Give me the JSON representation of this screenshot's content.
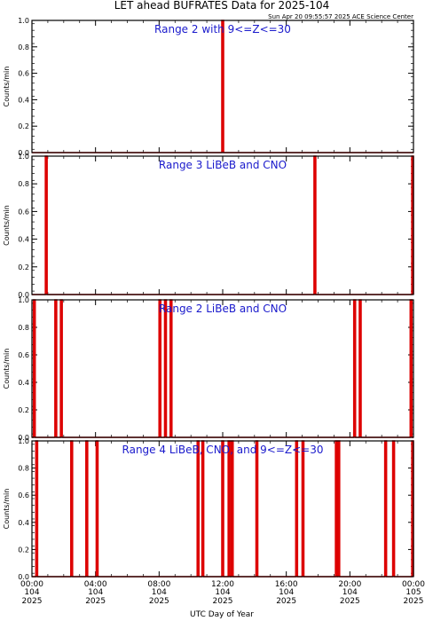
{
  "title": "LET ahead BUFRATES Data for 2025-104",
  "timestamp": "Sun Apr 20 09:55:57 2025 ACE Science Center",
  "xlabel": "UTC Day of Year",
  "colors": {
    "series": "#dd0000",
    "label": "#1a1acc",
    "axis": "#000000"
  },
  "chart_data": [
    {
      "type": "line",
      "label": "Range 2 with 9<=Z<=30",
      "ylabel": "Counts/min",
      "ylim": [
        0,
        1
      ],
      "yticks": [
        "0.0",
        "0.2",
        "0.4",
        "0.6",
        "0.8",
        "1.0"
      ],
      "xlim_hours": [
        0,
        24
      ],
      "spikes_hours": [
        12.0
      ]
    },
    {
      "type": "line",
      "label": "Range 3 LiBeB and CNO",
      "ylabel": "Counts/min",
      "ylim": [
        0,
        1
      ],
      "yticks": [
        "0.0",
        "0.2",
        "0.4",
        "0.6",
        "0.8",
        "1.0"
      ],
      "xlim_hours": [
        0,
        24
      ],
      "spikes_hours": [
        0.9,
        17.8,
        23.95
      ]
    },
    {
      "type": "line",
      "label": "Range 2 LiBeB and CNO",
      "ylabel": "Counts/min",
      "ylim": [
        0,
        1
      ],
      "yticks": [
        "0.0",
        "0.2",
        "0.4",
        "0.6",
        "0.8",
        "1.0"
      ],
      "xlim_hours": [
        0,
        24
      ],
      "spikes_hours": [
        0.15,
        1.5,
        1.85,
        8.05,
        8.4,
        8.75,
        20.3,
        20.65,
        23.85
      ]
    },
    {
      "type": "line",
      "label": "Range 4 LiBeB, CNO, and 9<=Z<=30",
      "ylabel": "Counts/min",
      "ylim": [
        0,
        1
      ],
      "yticks": [
        "0.0",
        "0.2",
        "0.4",
        "0.6",
        "0.8",
        "1.0"
      ],
      "xlim_hours": [
        0,
        24
      ],
      "spikes_hours": [
        0.3,
        2.5,
        3.45,
        4.1,
        10.45,
        10.75,
        12.0,
        12.4,
        12.6,
        14.15,
        16.65,
        17.05,
        19.15,
        19.3,
        22.25,
        22.75,
        23.95
      ]
    }
  ],
  "xticks": [
    {
      "h": 0,
      "time": "00:00",
      "doy": "104",
      "year": "2025"
    },
    {
      "h": 4,
      "time": "04:00",
      "doy": "104",
      "year": "2025"
    },
    {
      "h": 8,
      "time": "08:00",
      "doy": "104",
      "year": "2025"
    },
    {
      "h": 12,
      "time": "12:00",
      "doy": "104",
      "year": "2025"
    },
    {
      "h": 16,
      "time": "16:00",
      "doy": "104",
      "year": "2025"
    },
    {
      "h": 20,
      "time": "20:00",
      "doy": "104",
      "year": "2025"
    },
    {
      "h": 24,
      "time": "00:00",
      "doy": "105",
      "year": "2025"
    }
  ]
}
